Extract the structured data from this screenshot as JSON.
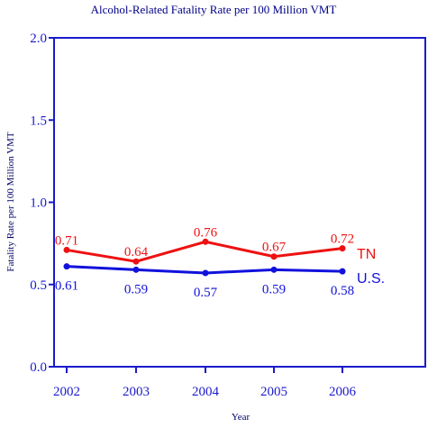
{
  "chart_data": {
    "type": "line",
    "title": "Alcohol-Related Fatality Rate per 100 Million VMT",
    "xlabel": "Year",
    "ylabel": "Fatality Rate per 100 Million VMT",
    "x": [
      "2002",
      "2003",
      "2004",
      "2005",
      "2006"
    ],
    "ylim": [
      0.0,
      2.0
    ],
    "yticks": [
      "0.0",
      "0.5",
      "1.0",
      "1.5",
      "2.0"
    ],
    "grid": false,
    "legend": "right-inline",
    "series": [
      {
        "name": "TN",
        "values": [
          0.71,
          0.64,
          0.76,
          0.67,
          0.72
        ],
        "labels": [
          "0.71",
          "0.64",
          "0.76",
          "0.67",
          "0.72"
        ],
        "color": "#ee1111"
      },
      {
        "name": "U.S.",
        "values": [
          0.61,
          0.59,
          0.57,
          0.59,
          0.58
        ],
        "labels": [
          "0.61",
          "0.59",
          "0.57",
          "0.59",
          "0.58"
        ],
        "color": "#1111dd"
      }
    ],
    "axis_color": "#1a1acc",
    "title_color": "#000088",
    "label_color": "#000066"
  }
}
